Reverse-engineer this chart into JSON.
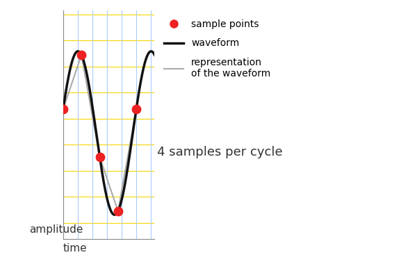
{
  "xlabel": "time",
  "ylabel": "amplitude",
  "annotation": "4 samples per cycle",
  "bg_color": "#ffffff",
  "waveform_color": "#111111",
  "waveform_lw": 2.5,
  "representation_color": "#aaaaaa",
  "representation_lw": 1.5,
  "sample_color": "#ee2222",
  "sample_size": 80,
  "grid_yellow_color": "#f5d800",
  "grid_blue_color": "#aaccff",
  "grid_lw": 0.8,
  "legend_sample_label": "sample points",
  "legend_waveform_label": "waveform",
  "legend_rep_label": "representation\nof the waveform",
  "xlim": [
    0,
    1.25
  ],
  "ylim": [
    -1.3,
    1.5
  ],
  "sine_amplitude": 1.0,
  "sine_phi": 0.3,
  "sample_times": [
    0.0,
    0.25,
    0.5,
    0.75,
    1.0
  ],
  "n_yellow_lines": 9,
  "n_blue_lines": 7,
  "ylabel_fontsize": 11,
  "xlabel_fontsize": 11,
  "annotation_fontsize": 13
}
